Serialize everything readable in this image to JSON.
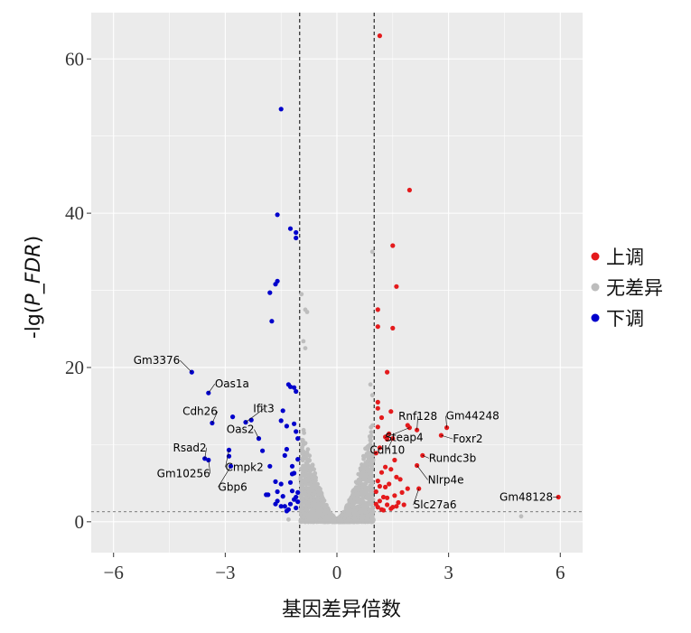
{
  "chart_data": {
    "type": "scatter",
    "subtype": "volcano",
    "xlabel": "基因差异倍数",
    "ylabel_prefix": "-lg(",
    "ylabel_italic": "P_FDR",
    "ylabel_suffix": ")",
    "xlim": [
      -6.6,
      6.6
    ],
    "ylim": [
      -4,
      66
    ],
    "x_ticks": [
      "−6",
      "−3",
      "0",
      "3",
      "6"
    ],
    "x_tick_values": [
      -6,
      -3,
      0,
      3,
      6
    ],
    "y_ticks": [
      "0",
      "20",
      "40",
      "60"
    ],
    "y_tick_values": [
      0,
      20,
      40,
      60
    ],
    "threshold_lines": {
      "x": [
        -1,
        1
      ],
      "y": 1.3
    },
    "grid": true,
    "legend_position": "right",
    "colors": {
      "up": "#e41a1c",
      "ns": "#bdbdbd",
      "down": "#0000cc",
      "panel": "#ebebeb",
      "grid": "#ffffff"
    },
    "legend": [
      {
        "key": "up",
        "label": "上调"
      },
      {
        "key": "ns",
        "label": "无差异"
      },
      {
        "key": "down",
        "label": "下调"
      }
    ],
    "series": [
      {
        "key": "down",
        "points": [
          [
            -1.5,
            53.5
          ],
          [
            -1.6,
            39.8
          ],
          [
            -1.25,
            38.0
          ],
          [
            -1.1,
            37.5
          ],
          [
            -1.1,
            36.8
          ],
          [
            -1.6,
            31.2
          ],
          [
            -1.65,
            30.8
          ],
          [
            -1.8,
            29.7
          ],
          [
            -1.75,
            26.0
          ],
          [
            -3.9,
            19.4
          ],
          [
            -3.45,
            16.7
          ],
          [
            -3.35,
            12.8
          ],
          [
            -3.55,
            8.2
          ],
          [
            -3.45,
            8.0
          ],
          [
            -2.8,
            13.6
          ],
          [
            -2.3,
            13.2
          ],
          [
            -2.45,
            12.9
          ],
          [
            -2.1,
            10.8
          ],
          [
            -2.9,
            9.3
          ],
          [
            -2.9,
            8.5
          ],
          [
            -2.85,
            7.2
          ],
          [
            -2.0,
            9.2
          ],
          [
            -1.8,
            7.2
          ],
          [
            -1.65,
            5.2
          ],
          [
            -1.9,
            3.5
          ],
          [
            -1.85,
            3.5
          ],
          [
            -1.6,
            3.9
          ],
          [
            -1.5,
            4.9
          ],
          [
            -1.5,
            13.1
          ],
          [
            -1.45,
            14.4
          ],
          [
            -1.3,
            17.8
          ],
          [
            -1.25,
            17.5
          ],
          [
            -1.15,
            17.4
          ],
          [
            -1.1,
            16.9
          ],
          [
            -1.35,
            9.4
          ],
          [
            -1.35,
            12.4
          ],
          [
            -1.15,
            12.7
          ],
          [
            -1.05,
            10.8
          ],
          [
            -1.25,
            5.1
          ],
          [
            -1.2,
            6.2
          ],
          [
            -1.15,
            6.3
          ],
          [
            -1.2,
            4.0
          ],
          [
            -1.1,
            3.2
          ],
          [
            -1.05,
            3.8
          ],
          [
            -1.45,
            3.3
          ],
          [
            -1.6,
            2.7
          ],
          [
            -1.65,
            2.3
          ],
          [
            -1.4,
            2.0
          ],
          [
            -1.3,
            1.6
          ],
          [
            -1.1,
            1.8
          ],
          [
            -1.25,
            2.3
          ],
          [
            -1.5,
            2.0
          ],
          [
            -1.15,
            2.9
          ],
          [
            -1.05,
            2.6
          ],
          [
            -1.35,
            1.4
          ],
          [
            -1.2,
            7.2
          ],
          [
            -1.05,
            8.1
          ],
          [
            -1.4,
            8.6
          ],
          [
            -1.1,
            11.7
          ]
        ]
      },
      {
        "key": "up",
        "points": [
          [
            1.15,
            63.0
          ],
          [
            1.95,
            43.0
          ],
          [
            1.5,
            35.8
          ],
          [
            1.6,
            30.5
          ],
          [
            1.1,
            27.5
          ],
          [
            1.1,
            25.3
          ],
          [
            1.5,
            25.1
          ],
          [
            1.35,
            19.4
          ],
          [
            1.1,
            15.5
          ],
          [
            1.45,
            14.3
          ],
          [
            1.9,
            12.5
          ],
          [
            1.95,
            12.2
          ],
          [
            2.15,
            11.9
          ],
          [
            2.95,
            12.2
          ],
          [
            2.8,
            11.2
          ],
          [
            2.3,
            8.6
          ],
          [
            2.15,
            7.3
          ],
          [
            1.5,
            10.8
          ],
          [
            1.4,
            11.4
          ],
          [
            1.35,
            10.7
          ],
          [
            2.2,
            4.3
          ],
          [
            5.95,
            3.2
          ],
          [
            1.1,
            14.7
          ],
          [
            1.2,
            13.5
          ],
          [
            1.3,
            11.0
          ],
          [
            1.45,
            6.8
          ],
          [
            1.6,
            5.8
          ],
          [
            1.7,
            5.5
          ],
          [
            1.9,
            4.3
          ],
          [
            1.75,
            3.8
          ],
          [
            1.55,
            3.4
          ],
          [
            1.3,
            4.5
          ],
          [
            1.25,
            3.2
          ],
          [
            1.15,
            2.7
          ],
          [
            1.35,
            2.2
          ],
          [
            1.1,
            1.9
          ],
          [
            1.45,
            1.7
          ],
          [
            1.2,
            1.6
          ],
          [
            1.65,
            2.5
          ],
          [
            1.05,
            3.9
          ],
          [
            1.1,
            5.3
          ],
          [
            1.2,
            6.4
          ],
          [
            1.3,
            7.1
          ],
          [
            1.05,
            8.9
          ],
          [
            1.15,
            9.6
          ],
          [
            1.55,
            8.0
          ],
          [
            1.4,
            4.9
          ],
          [
            1.6,
            2.0
          ],
          [
            1.25,
            1.5
          ],
          [
            1.5,
            1.9
          ],
          [
            1.8,
            2.2
          ],
          [
            1.05,
            2.3
          ],
          [
            1.15,
            4.6
          ],
          [
            1.35,
            3.1
          ],
          [
            1.1,
            12.3
          ]
        ]
      }
    ],
    "annotations": [
      {
        "label": "Gm3376",
        "x": -3.9,
        "y": 19.4
      },
      {
        "label": "Oas1a",
        "x": -3.45,
        "y": 16.7
      },
      {
        "label": "Cdh26",
        "x": -3.35,
        "y": 12.8
      },
      {
        "label": "Ifit3",
        "x": -2.45,
        "y": 12.9
      },
      {
        "label": "Oas2",
        "x": -2.1,
        "y": 10.8
      },
      {
        "label": "Rsad2",
        "x": -3.55,
        "y": 8.2
      },
      {
        "label": "Cmpk2",
        "x": -2.9,
        "y": 9.3
      },
      {
        "label": "Gm10256",
        "x": -3.45,
        "y": 8.0
      },
      {
        "label": "Gbp6",
        "x": -2.85,
        "y": 7.2
      },
      {
        "label": "Rnf128",
        "x": 2.15,
        "y": 11.9
      },
      {
        "label": "Gm44248",
        "x": 2.95,
        "y": 12.2
      },
      {
        "label": "Foxr2",
        "x": 2.8,
        "y": 11.2
      },
      {
        "label": "Steap4",
        "x": 1.95,
        "y": 12.2
      },
      {
        "label": "Rundc3b",
        "x": 2.3,
        "y": 8.6
      },
      {
        "label": "Cdh10",
        "x": 1.5,
        "y": 10.8
      },
      {
        "label": "Nlrp4e",
        "x": 2.15,
        "y": 7.3
      },
      {
        "label": "Slc27a6",
        "x": 2.2,
        "y": 4.3
      },
      {
        "label": "Gm48128",
        "x": 5.95,
        "y": 3.2
      }
    ]
  }
}
